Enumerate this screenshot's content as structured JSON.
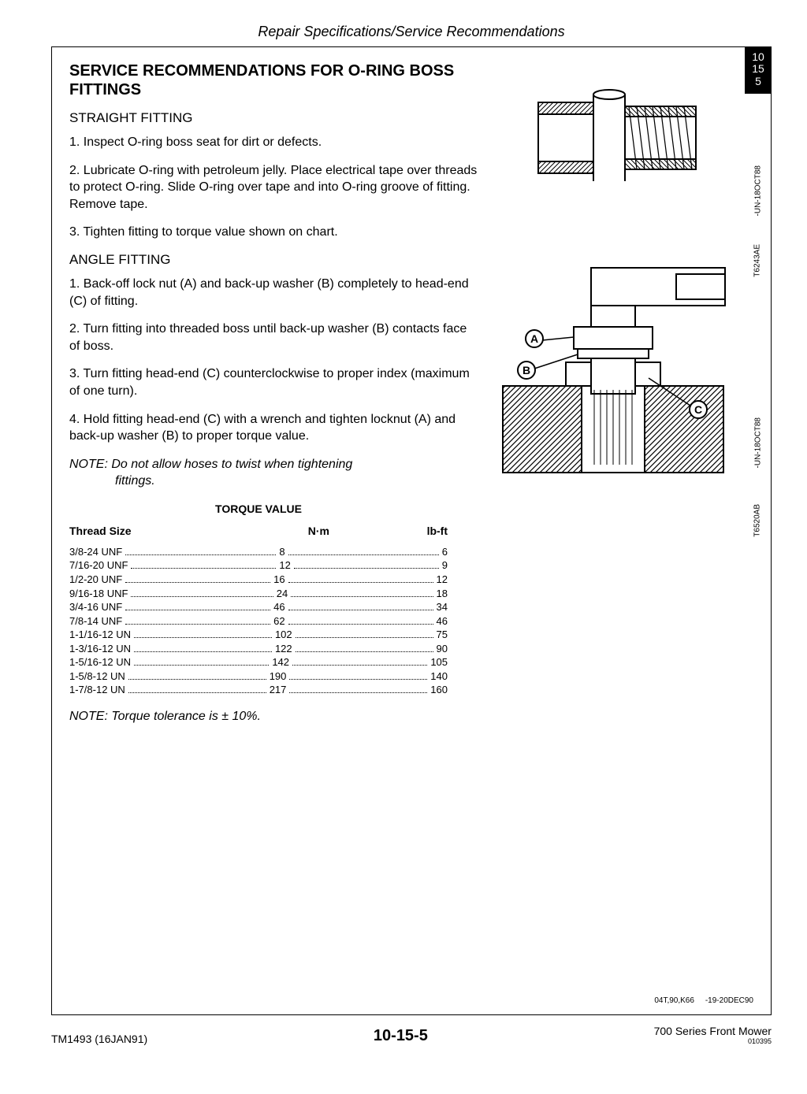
{
  "header": "Repair Specifications/Service Recommendations",
  "title": "SERVICE RECOMMENDATIONS FOR O-RING BOSS FITTINGS",
  "straight": {
    "heading": "STRAIGHT FITTING",
    "p1": "1. Inspect O-ring boss seat for dirt or defects.",
    "p2": "2. Lubricate O-ring with petroleum jelly. Place electrical tape over threads to protect O-ring. Slide O-ring over tape and into O-ring groove of fitting. Remove tape.",
    "p3": "3. Tighten fitting to torque value shown on chart."
  },
  "angle": {
    "heading": "ANGLE FITTING",
    "p1": "1. Back-off lock nut (A) and back-up washer (B) completely to head-end (C) of fitting.",
    "p2": "2. Turn fitting into threaded boss until back-up washer (B) contacts face of boss.",
    "p3": "3. Turn fitting head-end (C) counterclockwise to proper index (maximum of one turn).",
    "p4": "4. Hold fitting head-end (C) with a wrench and tighten locknut (A) and back-up washer (B) to proper torque value."
  },
  "note1_line1": "NOTE: Do not allow hoses to twist when tightening",
  "note1_line2": "fittings.",
  "torque": {
    "title": "TORQUE VALUE",
    "col_size": "Thread Size",
    "col_nm": "N·m",
    "col_lbft": "lb-ft",
    "rows": [
      {
        "size": "3/8-24 UNF",
        "nm": "8",
        "lbft": "6"
      },
      {
        "size": "7/16-20 UNF",
        "nm": "12",
        "lbft": "9"
      },
      {
        "size": "1/2-20 UNF",
        "nm": "16",
        "lbft": "12"
      },
      {
        "size": "9/16-18 UNF",
        "nm": "24",
        "lbft": "18"
      },
      {
        "size": "3/4-16 UNF",
        "nm": "46",
        "lbft": "34"
      },
      {
        "size": "7/8-14 UNF",
        "nm": "62",
        "lbft": "46"
      },
      {
        "size": "1-1/16-12 UN",
        "nm": "102",
        "lbft": "75"
      },
      {
        "size": "1-3/16-12 UN",
        "nm": "122",
        "lbft": "90"
      },
      {
        "size": "1-5/16-12 UN",
        "nm": "142",
        "lbft": "105"
      },
      {
        "size": "1-5/8-12 UN",
        "nm": "190",
        "lbft": "140"
      },
      {
        "size": "1-7/8-12 UN",
        "nm": "217",
        "lbft": "160"
      }
    ]
  },
  "note2": "NOTE: Torque tolerance is ± 10%.",
  "side_tab": {
    "l1": "10",
    "l2": "15",
    "l3": "5"
  },
  "vtext": {
    "a": "-UN-18OCT88",
    "b": "T6243AE",
    "c": "-UN-18OCT88",
    "d": "T6520AB"
  },
  "meta": {
    "left": "04T,90,K66",
    "right": "-19-20DEC90"
  },
  "footer": {
    "left": "TM1493 (16JAN91)",
    "center": "10-15-5",
    "right": "700 Series Front Mower",
    "right_small": "010395"
  },
  "fig2_labels": {
    "A": "A",
    "B": "B",
    "C": "C"
  }
}
